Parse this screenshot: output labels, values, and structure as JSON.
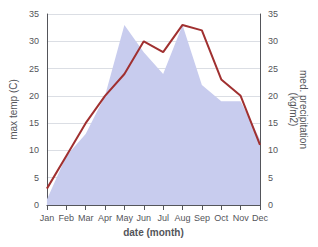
{
  "chart_data": {
    "type": "line",
    "xlabel": "date (month)",
    "ylabel": "max temp (C)",
    "y2label": "med. precipitation\n(kg/m2)",
    "categories": [
      "Jan",
      "Feb",
      "Mar",
      "Apr",
      "May",
      "Jun",
      "Jul",
      "Aug",
      "Sep",
      "Oct",
      "Nov",
      "Dec"
    ],
    "series": [
      {
        "type": "area",
        "axis": "y2",
        "color": "#c8ccee",
        "values": [
          1,
          9,
          13,
          20,
          33,
          28,
          24,
          33,
          22,
          19,
          19,
          12
        ]
      },
      {
        "type": "line",
        "color": "#a03030",
        "values": [
          3,
          9,
          15,
          20,
          24,
          30,
          28,
          33,
          32,
          23,
          20,
          11
        ]
      }
    ],
    "ylim": [
      0,
      35
    ],
    "yticks": [
      0,
      5,
      10,
      15,
      20,
      25,
      30,
      35
    ],
    "y2lim": [
      0,
      35
    ],
    "y2ticks": [
      0,
      5,
      10,
      15,
      20,
      25,
      30,
      35
    ],
    "grid": true
  }
}
